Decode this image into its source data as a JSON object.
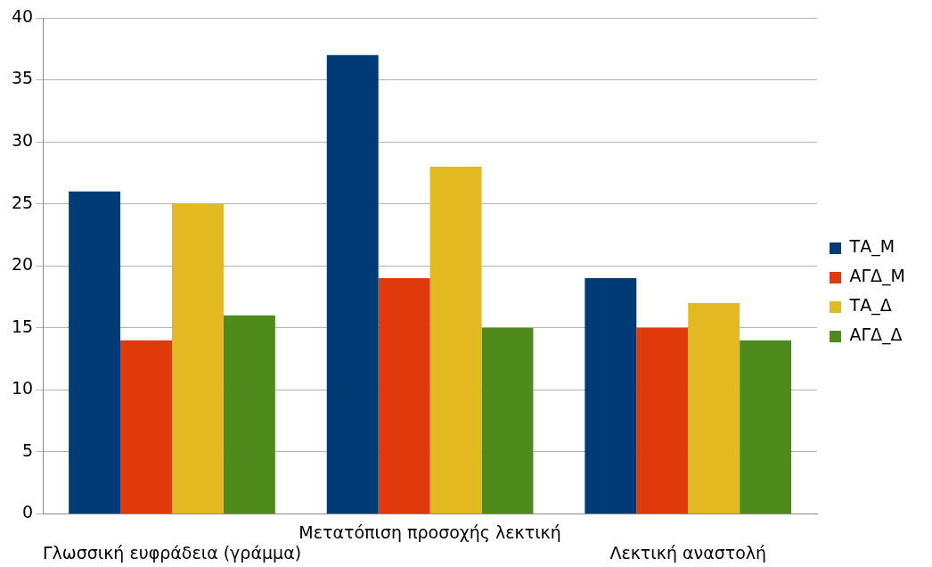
{
  "chart_data": {
    "type": "bar",
    "categories": [
      "Γλωσσική ευφράδεια (γράμμα)",
      "Μετατόπιση προσοχής λεκτική",
      "Λεκτική αναστολή"
    ],
    "series": [
      {
        "name": "ΤΑ_Μ",
        "color": "#003b75",
        "values": [
          26,
          37,
          19
        ]
      },
      {
        "name": "ΑΓΔ_Μ",
        "color": "#e0390c",
        "values": [
          14,
          19,
          15
        ]
      },
      {
        "name": "ΤΑ_Δ",
        "color": "#e2b920",
        "values": [
          25,
          28,
          17
        ]
      },
      {
        "name": "ΑΓΔ_Δ",
        "color": "#4f8b1c",
        "values": [
          16,
          15,
          14
        ]
      }
    ],
    "ylim": [
      0,
      40
    ],
    "yticks": [
      0,
      5,
      10,
      15,
      20,
      25,
      30,
      35,
      40
    ],
    "grid": "y",
    "legend": "right"
  }
}
